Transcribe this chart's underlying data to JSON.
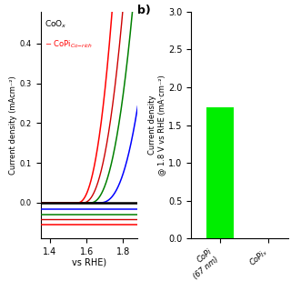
{
  "panel_a": {
    "xlabel": "vs RHE)",
    "ylabel": "Current density (mAcm⁻²)",
    "xlim": [
      1.35,
      1.88
    ],
    "ylim": [
      -0.09,
      0.48
    ],
    "xticks": [
      1.4,
      1.6,
      1.8
    ],
    "legend_coo": "CoO$_x$",
    "legend_copi": "CoPi$_{Co-rich}$",
    "black_line_y": 0.0
  },
  "panel_b": {
    "bar_value": 1.73,
    "bar_color": "#00ee00",
    "ylabel": "Current density\n@ 1.8 V vs RHE (mA·cm⁻²)",
    "ylim": [
      0,
      3.0
    ],
    "yticks": [
      0.0,
      0.5,
      1.0,
      1.5,
      2.0,
      2.5,
      3.0
    ],
    "label_b": "b)",
    "xtick1": "CoPi\n(67 nm)",
    "xtick2": "CoPiₓ"
  },
  "background_color": "#ffffff",
  "curves": {
    "red_onset": 1.55,
    "red_steepness": 22,
    "red_exp": 2.3,
    "red_dip": -0.055,
    "red2_onset": 1.58,
    "red2_steepness": 16,
    "red2_exp": 2.3,
    "red2_dip": -0.04,
    "green_onset": 1.62,
    "green_steepness": 14,
    "green_exp": 2.3,
    "green_dip": -0.03,
    "blue_onset": 1.67,
    "blue_steepness": 12,
    "blue_exp": 2.5,
    "blue_dip": -0.015
  }
}
